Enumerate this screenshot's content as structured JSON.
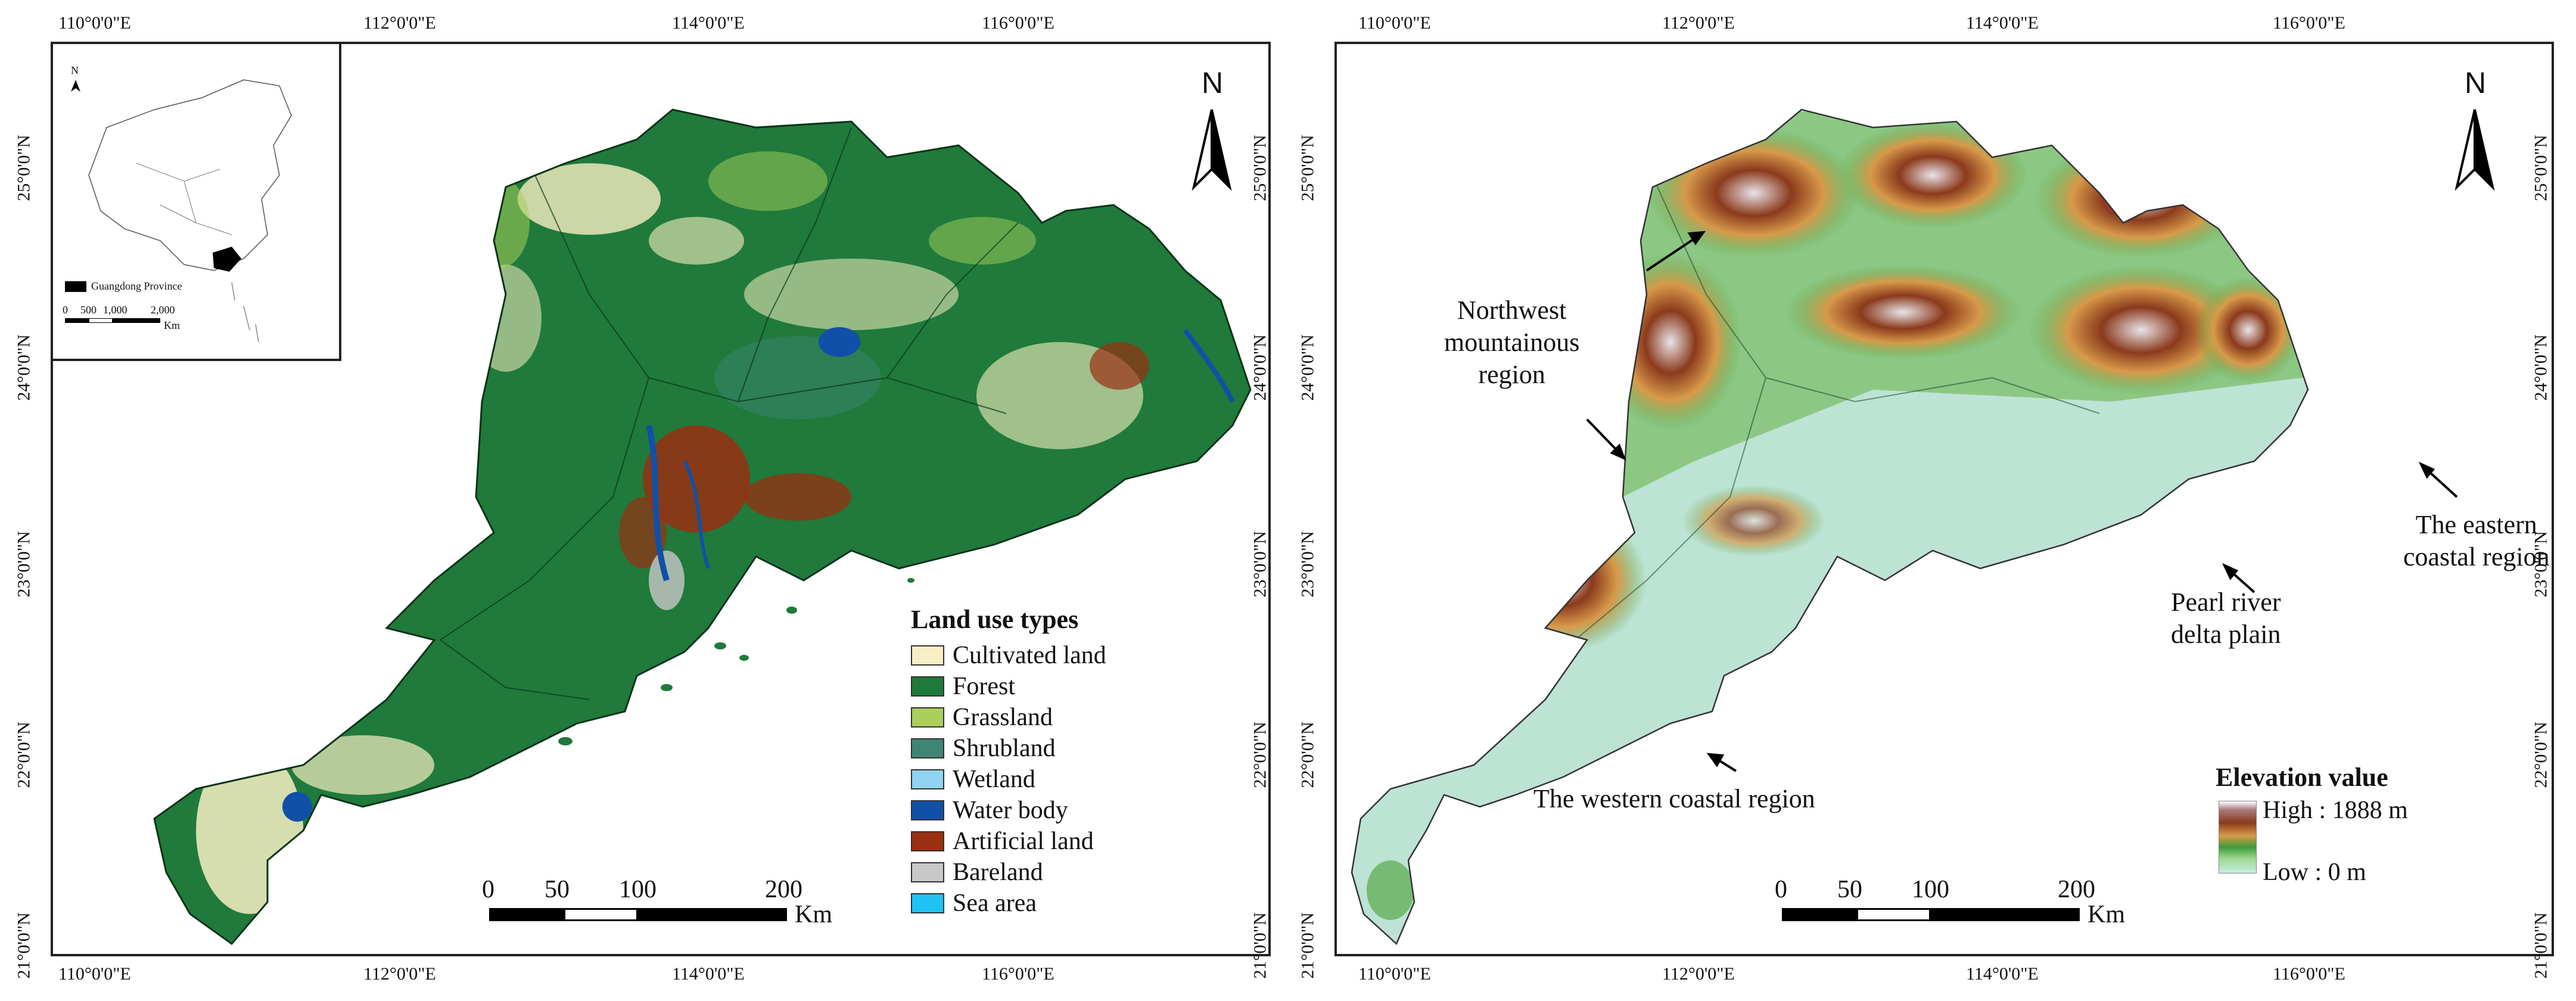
{
  "left_panel": {
    "longitude_labels": [
      "110°0'0\"E",
      "112°0'0\"E",
      "114°0'0\"E",
      "116°0'0\"E"
    ],
    "latitude_labels": [
      "25°0'0\"N",
      "24°0'0\"N",
      "23°0'0\"N",
      "22°0'0\"N",
      "21°0'0\"N"
    ],
    "north": "N",
    "inset": {
      "north": "N",
      "legend_label": "Guangdong Province",
      "scale_ticks": [
        "0",
        "500",
        "1,000",
        "2,000"
      ],
      "scale_unit": "Km"
    },
    "legend": {
      "title": "Land use types",
      "items": [
        {
          "label": "Cultivated land",
          "color": "#f7eec3"
        },
        {
          "label": "Forest",
          "color": "#1f7a3b"
        },
        {
          "label": "Grassland",
          "color": "#a8d05a"
        },
        {
          "label": "Shrubland",
          "color": "#3f8576"
        },
        {
          "label": "Wetland",
          "color": "#8fd3f0"
        },
        {
          "label": "Water body",
          "color": "#1150a8"
        },
        {
          "label": "Artificial land",
          "color": "#9a2f12"
        },
        {
          "label": "Bareland",
          "color": "#c8c8c8"
        },
        {
          "label": "Sea area",
          "color": "#1ec3f3"
        }
      ]
    },
    "scale": {
      "ticks": [
        "0",
        "50",
        "100",
        "200"
      ],
      "unit": "Km"
    }
  },
  "right_panel": {
    "longitude_labels": [
      "110°0'0\"E",
      "112°0'0\"E",
      "114°0'0\"E",
      "116°0'0\"E"
    ],
    "latitude_labels": [
      "25°0'0\"N",
      "24°0'0\"N",
      "23°0'0\"N",
      "22°0'0\"N",
      "21°0'0\"N"
    ],
    "north": "N",
    "regions": {
      "northwest": "Northwest\nmountainous\nregion",
      "eastern": "The eastern\ncoastal region",
      "pearl": "Pearl river\ndelta plain",
      "western": "The western coastal region"
    },
    "legend": {
      "title": "Elevation value",
      "high": "High : 1888 m",
      "low": "Low : 0 m",
      "colors": [
        "#ffffff",
        "#8b3a1c",
        "#d89a4a",
        "#3f9a3a",
        "#9ed890",
        "#c6ece6"
      ]
    },
    "scale": {
      "ticks": [
        "0",
        "50",
        "100",
        "200"
      ],
      "unit": "Km"
    }
  }
}
